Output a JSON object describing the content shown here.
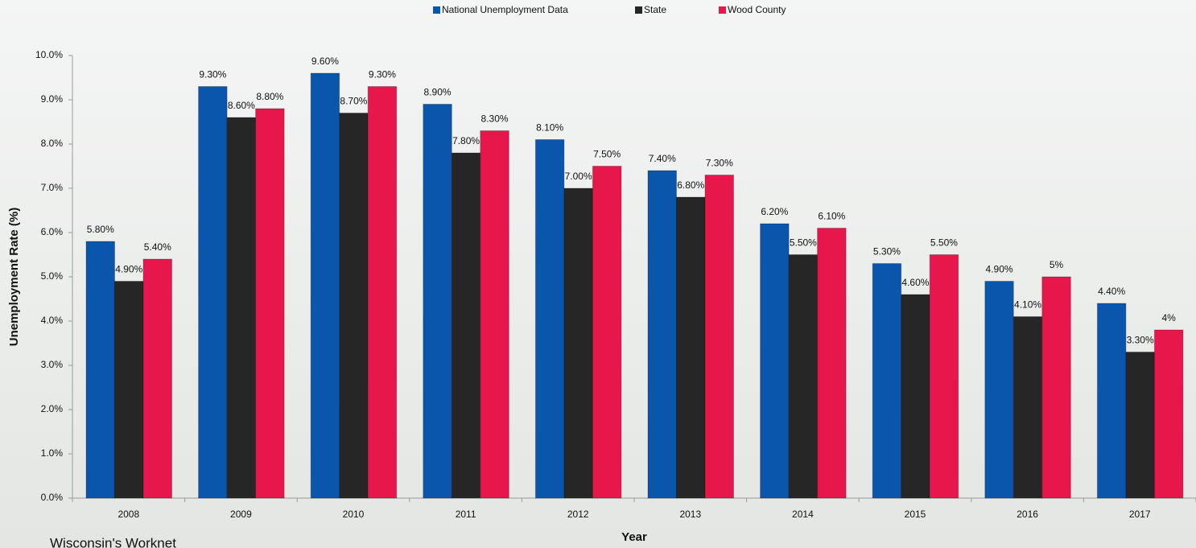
{
  "chart_data": {
    "type": "bar",
    "x_label": "Year",
    "y_label": "Unemployment Rate (%)",
    "source": "Wisconsin's Worknet",
    "categories": [
      "2008",
      "2009",
      "2010",
      "2011",
      "2012",
      "2013",
      "2014",
      "2015",
      "2016",
      "2017"
    ],
    "series": [
      {
        "name": "National Unemployment Data",
        "color": "#0b56ad",
        "values": [
          5.8,
          9.3,
          9.6,
          8.9,
          8.1,
          7.4,
          6.2,
          5.3,
          4.9,
          4.4
        ],
        "value_labels": [
          "5.80%",
          "9.30%",
          "9.60%",
          "8.90%",
          "8.10%",
          "7.40%",
          "6.20%",
          "5.30%",
          "4.90%",
          "4.40%"
        ]
      },
      {
        "name": "State",
        "color": "#262626",
        "values": [
          4.9,
          8.6,
          8.7,
          7.8,
          7.0,
          6.8,
          5.5,
          4.6,
          4.1,
          3.3
        ],
        "value_labels": [
          "4.90%",
          "8.60%",
          "8.70%",
          "7.80%",
          "7.00%",
          "6.80%",
          "5.50%",
          "4.60%",
          "4.10%",
          "3.30%"
        ]
      },
      {
        "name": "Wood County",
        "color": "#e8174b",
        "values": [
          5.4,
          8.8,
          9.3,
          8.3,
          7.5,
          7.3,
          6.1,
          5.5,
          5,
          3.8
        ],
        "value_labels": [
          "5.40%",
          "8.80%",
          "9.30%",
          "8.30%",
          "7.50%",
          "7.30%",
          "6.10%",
          "5.50%",
          "5%",
          "4%"
        ]
      }
    ],
    "ylim": [
      0,
      10
    ],
    "yticks": [
      {
        "value": 0,
        "label": "0.0%"
      },
      {
        "value": 1,
        "label": "1.0%"
      },
      {
        "value": 2,
        "label": "2.0%"
      },
      {
        "value": 3,
        "label": "3.0%"
      },
      {
        "value": 4,
        "label": "4.0%"
      },
      {
        "value": 5,
        "label": "5.0%"
      },
      {
        "value": 6,
        "label": "6.0%"
      },
      {
        "value": 7,
        "label": "7.0%"
      },
      {
        "value": 8,
        "label": "8.0%"
      },
      {
        "value": 9,
        "label": "9.0%"
      },
      {
        "value": 10,
        "label": "10.0%"
      }
    ],
    "legend": "top"
  }
}
